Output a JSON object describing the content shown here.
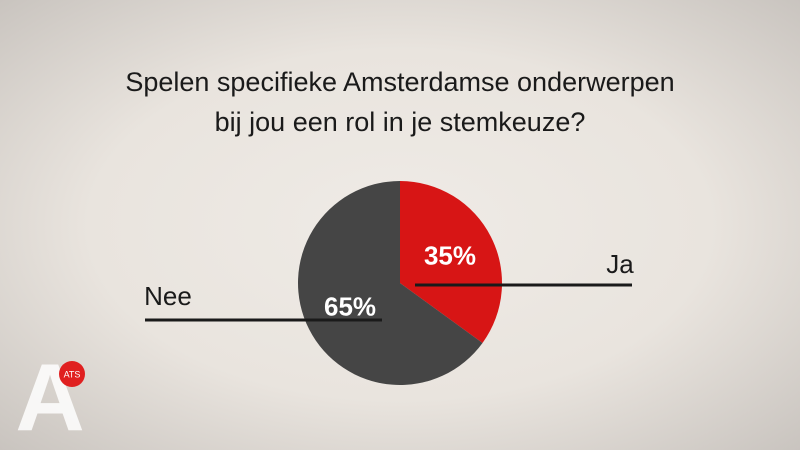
{
  "chart_data": {
    "type": "pie",
    "title": "Spelen specifieke Amsterdamse onderwerpen bij jou een rol in je stemkeuze?",
    "categories": [
      "Ja",
      "Nee"
    ],
    "values": [
      35,
      65
    ],
    "value_labels": [
      "35%",
      "65%"
    ],
    "colors": [
      "#d71515",
      "#454545"
    ]
  },
  "logo": {
    "letter": "A",
    "badge": "ATS"
  }
}
